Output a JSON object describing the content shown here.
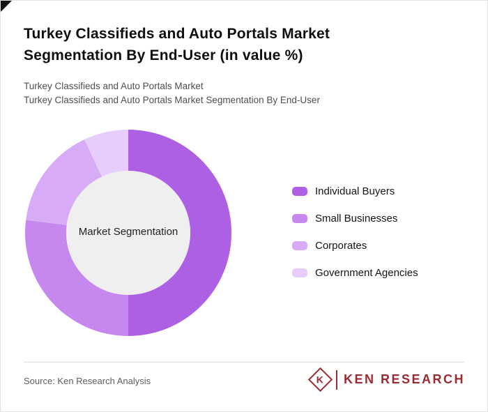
{
  "page": {
    "title_line1": "Turkey Classifieds and Auto Portals Market",
    "title_line2": "Segmentation By End-User (in value %)",
    "subtitle_line1": "Turkey Classifieds and Auto Portals Market",
    "subtitle_line2": "Turkey Classifieds and Auto Portals Market Segmentation By End-User"
  },
  "chart_data": {
    "type": "pie",
    "donut": true,
    "title": "Turkey Classifieds and Auto Portals Market Segmentation By End-User (in value %)",
    "center_label": "Market Segmentation",
    "categories": [
      "Individual Buyers",
      "Small Businesses",
      "Corporates",
      "Government Agencies"
    ],
    "values": [
      50,
      27,
      16,
      7
    ],
    "unit": "%",
    "colors": [
      "#ae60e4",
      "#c688ef",
      "#d8abf6",
      "#e7cdfb"
    ],
    "center_fill": "#efefef",
    "legend_position": "right",
    "start_angle_deg": 0,
    "direction": "clockwise"
  },
  "footer": {
    "source": "Source: Ken Research Analysis",
    "logo": {
      "mark": "K",
      "text": "KEN RESEARCH",
      "color": "#9a2b33"
    }
  }
}
